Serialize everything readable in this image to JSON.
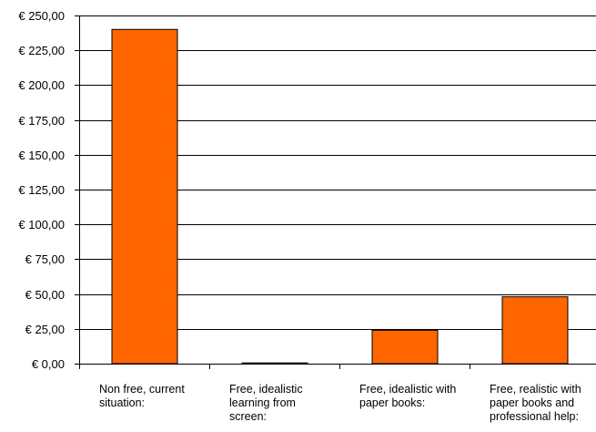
{
  "chart_data": {
    "type": "bar",
    "categories": [
      [
        "Non free, current",
        "situation:"
      ],
      [
        "Free, idealistic",
        "learning from",
        "screen:"
      ],
      [
        "Free, idealistic with",
        "paper books:"
      ],
      [
        "Free, realistic with",
        "paper books and",
        "professional help:"
      ]
    ],
    "values": [
      240,
      0,
      24,
      48
    ],
    "ylim": [
      0,
      250
    ],
    "yticks": [
      "€ 0,00",
      "€ 25,00",
      "€ 50,00",
      "€ 75,00",
      "€ 100,00",
      "€ 125,00",
      "€ 150,00",
      "€ 175,00",
      "€ 200,00",
      "€ 225,00",
      "€ 250,00"
    ],
    "grid": true,
    "legend": "none",
    "bar_color": "#ff6600",
    "title": "",
    "xlabel": "",
    "ylabel": ""
  }
}
